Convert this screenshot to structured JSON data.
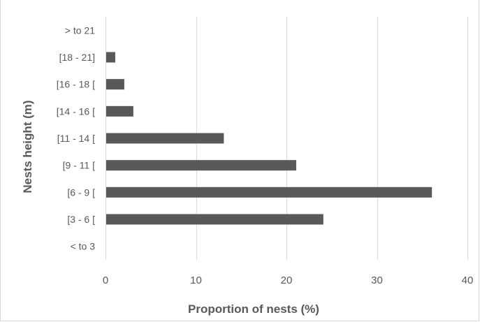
{
  "chart_data": {
    "type": "bar",
    "orientation": "horizontal",
    "title": "",
    "xlabel": "Proportion of nests (%)",
    "ylabel": "Nests height (m)",
    "categories": [
      "< to 3",
      "[3 - 6 [",
      "[6 - 9 [",
      "[9 - 11 [",
      "[11 - 14 [",
      "[14 - 16 [",
      "[16 - 18 [",
      "[18 - 21]",
      "> to 21"
    ],
    "values": [
      0,
      24,
      36,
      21,
      13,
      3,
      2,
      1,
      0
    ],
    "xlim": [
      0,
      40
    ],
    "xticks": [
      0,
      10,
      20,
      30,
      40
    ],
    "grid": "vertical",
    "legend": "none",
    "bar_color": "#595959"
  }
}
